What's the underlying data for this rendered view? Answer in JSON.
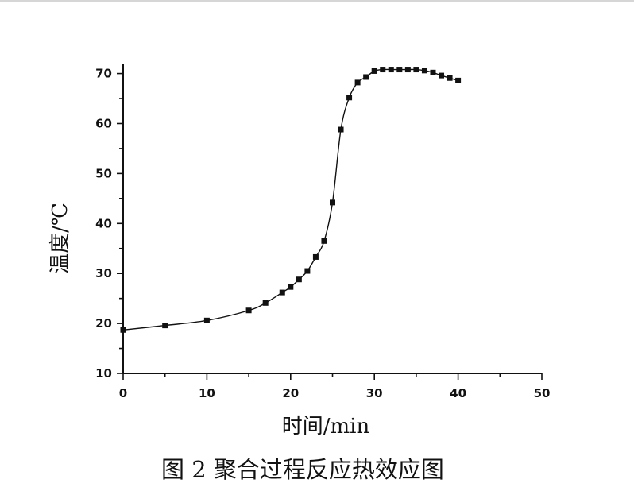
{
  "caption": "图 2 聚合过程反应热效应图",
  "chart_data": {
    "type": "line",
    "xlabel": "时间/min",
    "ylabel": "温度/℃",
    "xlim": [
      0,
      50
    ],
    "ylim": [
      10,
      72
    ],
    "x_ticks": [
      0,
      10,
      20,
      30,
      40,
      50
    ],
    "y_ticks": [
      10,
      20,
      30,
      40,
      50,
      60,
      70
    ],
    "grid": false,
    "marker": "square",
    "series": [
      {
        "x": [
          0,
          5,
          10,
          15,
          17,
          19,
          20,
          21,
          22,
          23,
          24,
          25,
          26,
          27,
          28,
          29,
          30,
          31,
          32,
          33,
          34,
          35,
          36,
          37,
          38,
          39,
          40
        ],
        "y": [
          18.7,
          19.6,
          20.6,
          22.6,
          24.1,
          26.2,
          27.3,
          28.8,
          30.5,
          33.3,
          36.5,
          44.2,
          58.8,
          65.2,
          68.2,
          69.3,
          70.5,
          70.8,
          70.8,
          70.8,
          70.8,
          70.8,
          70.6,
          70.2,
          69.6,
          69.1,
          68.6
        ]
      }
    ]
  }
}
